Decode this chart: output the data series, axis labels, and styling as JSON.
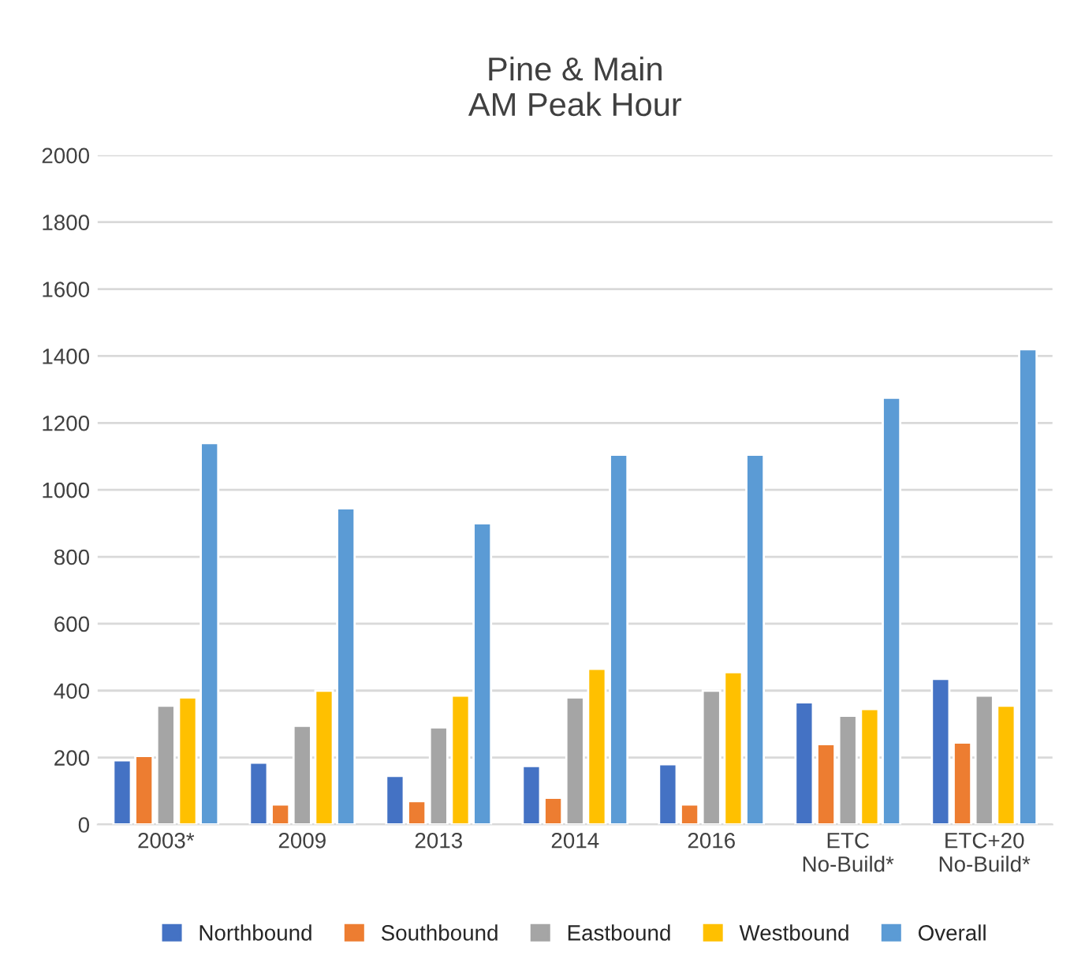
{
  "chart_data": {
    "type": "bar",
    "title": "Pine & Main\nAM Peak Hour",
    "categories": [
      "2003*",
      "2009",
      "2013",
      "2014",
      "2016",
      "ETC\nNo-Build*",
      "ETC+20\nNo-Build*"
    ],
    "series": [
      {
        "name": "Northbound",
        "color": "#4472c4",
        "values": [
          192,
          185,
          145,
          175,
          180,
          365,
          435
        ]
      },
      {
        "name": "Southbound",
        "color": "#ed7d31",
        "values": [
          205,
          60,
          70,
          80,
          60,
          240,
          245
        ]
      },
      {
        "name": "Eastbound",
        "color": "#a5a5a5",
        "values": [
          355,
          295,
          290,
          380,
          400,
          325,
          385
        ]
      },
      {
        "name": "Westbound",
        "color": "#ffc000",
        "values": [
          380,
          400,
          385,
          465,
          455,
          345,
          355
        ]
      },
      {
        "name": "Overall",
        "color": "#5b9bd5",
        "values": [
          1140,
          945,
          900,
          1105,
          1105,
          1275,
          1420
        ]
      }
    ],
    "ylim": [
      0,
      2000
    ],
    "yticks": [
      0,
      200,
      400,
      600,
      800,
      1000,
      1200,
      1400,
      1600,
      1800,
      2000
    ],
    "grid": "y",
    "legend": "bottom"
  }
}
